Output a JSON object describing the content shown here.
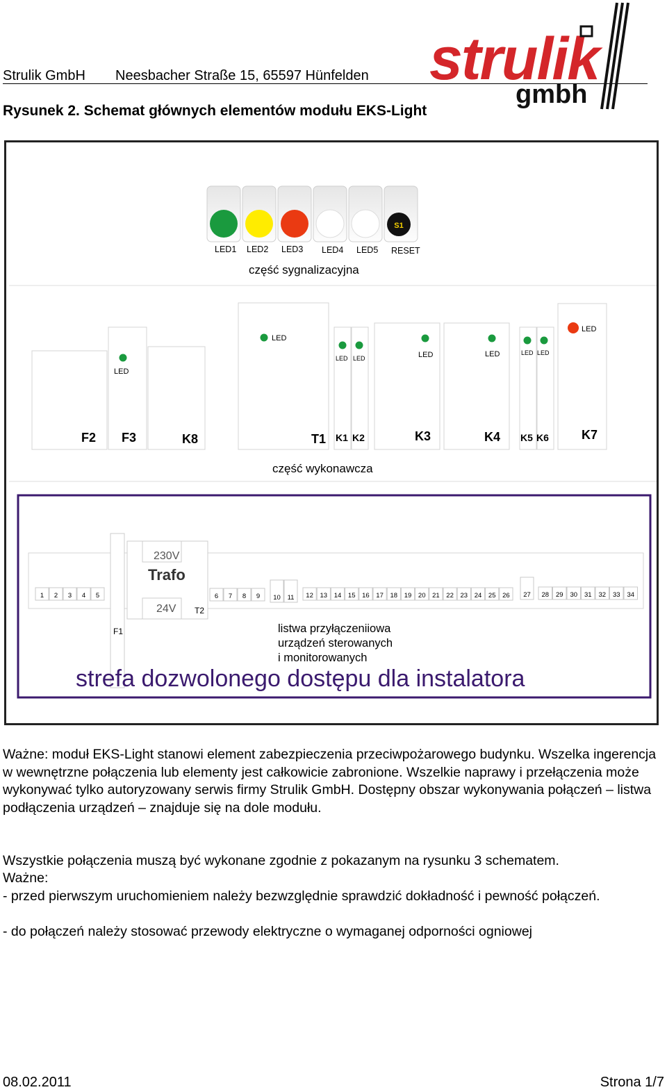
{
  "header": {
    "company": "Strulik GmbH",
    "address": "Neesbacher Straße 15,  65597 Hünfelden",
    "logo_text": "strulik",
    "logo_subtext": "gmbh"
  },
  "figure_title": "Rysunek 2. Schemat głównych elementów modułu EKS-Light",
  "signal": {
    "leds": [
      {
        "label": "LED1",
        "color": "#1a9a3e"
      },
      {
        "label": "LED2",
        "color": "#ffec00"
      },
      {
        "label": "LED3",
        "color": "#ea3a12"
      },
      {
        "label": "LED4",
        "color": "#ffffff"
      },
      {
        "label": "LED5",
        "color": "#ffffff"
      }
    ],
    "reset_button": "S1",
    "reset_label": "RESET",
    "section_label": "część sygnalizacyjna"
  },
  "executive": {
    "section_label": "część wykonawcza",
    "led_text": "LED",
    "modules": [
      "F2",
      "F3",
      "K8",
      "T1",
      "K1",
      "K2",
      "K3",
      "K4",
      "K5",
      "K6",
      "K7"
    ],
    "led_green": "#1a9a3e",
    "led_red": "#ea3a12"
  },
  "installer": {
    "trafo_label": "Trafo",
    "v230": "230V",
    "v24": "24V",
    "t2": "T2",
    "f1": "F1",
    "terminals": [
      "1",
      "2",
      "3",
      "4",
      "5",
      "6",
      "7",
      "8",
      "9",
      "10",
      "11",
      "12",
      "13",
      "14",
      "15",
      "16",
      "17",
      "18",
      "19",
      "20",
      "21",
      "22",
      "23",
      "24",
      "25",
      "26",
      "27",
      "28",
      "29",
      "30",
      "31",
      "32",
      "33",
      "34"
    ],
    "strip_label_1": "listwa przyłączeniiowa",
    "strip_label_2": "urządzeń sterowanych",
    "strip_label_3": "i monitorowanych",
    "zone_label": "strefa dozwolonego dostępu dla instalatora",
    "zone_color": "#3b1a6e"
  },
  "body": {
    "p1": "Ważne: moduł EKS-Light stanowi element zabezpieczenia przeciwpożarowego budynku. Wszelka ingerencja w wewnętrzne połączenia lub elementy jest całkowicie zabronione. Wszelkie naprawy i przełączenia może wykonywać tylko autoryzowany serwis firmy Strulik GmbH. Dostępny obszar wykonywania połączeń – listwa podłączenia urządzeń – znajduje się na dole modułu.",
    "p2_line1": "Wszystkie połączenia muszą być wykonane zgodnie z pokazanym na rysunku 3 schematem.",
    "p2_line2": "Ważne:",
    "p2_line3": "- przed pierwszym uruchomieniem należy bezwzględnie sprawdzić dokładność i pewność połączeń.",
    "p2_line4": "- do połączeń należy stosować przewody elektryczne o wymaganej odporności ogniowej"
  },
  "footer": {
    "date": "08.02.2011",
    "page": "Strona 1/7"
  }
}
